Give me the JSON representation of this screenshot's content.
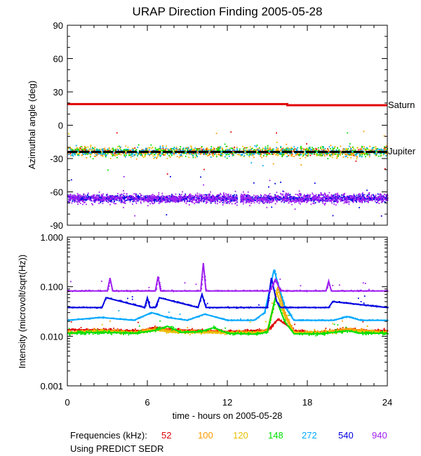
{
  "chart_data": [
    {
      "type": "scatter",
      "title": "URAP Direction Finding  2005-05-28",
      "ylabel": "Azimuthal angle (deg)",
      "xlim": [
        0,
        24
      ],
      "ylim": [
        -90,
        90
      ],
      "yticks": [
        "90",
        "60",
        "30",
        "0",
        "-30",
        "-60",
        "-90"
      ],
      "ytick_values": [
        90,
        60,
        30,
        0,
        -30,
        -60,
        -90
      ],
      "reference_lines": [
        {
          "name": "Saturn",
          "color": "#e00000",
          "x": [
            0,
            16.5,
            16.5,
            24
          ],
          "y": [
            19,
            19,
            18,
            18
          ]
        },
        {
          "name": "Jupiter",
          "color": "#000000",
          "x": [
            0,
            24
          ],
          "y": [
            -24,
            -24
          ]
        }
      ],
      "point_clusters": [
        {
          "frequency": "52",
          "center": -24,
          "spread": 4,
          "color": "#e00000"
        },
        {
          "frequency": "100",
          "center": -24,
          "spread": 7,
          "color": "#ff9900"
        },
        {
          "frequency": "120",
          "center": -24,
          "spread": 6,
          "color": "#e8c000"
        },
        {
          "frequency": "148",
          "center": -24,
          "spread": 6,
          "color": "#00e000"
        },
        {
          "frequency": "272",
          "center": -24,
          "spread": 5,
          "color": "#00a8ff"
        },
        {
          "frequency": "540",
          "center": -66,
          "spread": 4,
          "color": "#0000e0"
        },
        {
          "frequency": "940",
          "center": -66,
          "spread": 6,
          "color": "#a020f0"
        }
      ]
    },
    {
      "type": "line",
      "ylabel": "Intensity (microvolt/sqrt(Hz))",
      "xlabel": "time - hours on 2005-05-28",
      "xlim": [
        0,
        24
      ],
      "ylim": [
        0.001,
        1.0
      ],
      "yscale": "log",
      "yticks": [
        "1.000",
        "0.100",
        "0.010",
        "0.001"
      ],
      "ytick_values": [
        1.0,
        0.1,
        0.01,
        0.001
      ],
      "xticks": [
        "0",
        "6",
        "12",
        "18",
        "24"
      ],
      "xtick_values": [
        0,
        6,
        12,
        18,
        24
      ],
      "series": [
        {
          "frequency": "52",
          "color": "#e00000",
          "baseline": 0.0135,
          "x": [
            0,
            2.5,
            4,
            5.5,
            6.5,
            7.2,
            8,
            10,
            12,
            14,
            15,
            15.8,
            16.3,
            17,
            18,
            19,
            20,
            21,
            22,
            24
          ],
          "y": [
            0.0135,
            0.0135,
            0.013,
            0.013,
            0.015,
            0.014,
            0.0135,
            0.013,
            0.0125,
            0.013,
            0.013,
            0.022,
            0.018,
            0.013,
            0.012,
            0.012,
            0.013,
            0.014,
            0.013,
            0.013
          ]
        },
        {
          "frequency": "100",
          "color": "#ff9900",
          "baseline": 0.012,
          "x": [
            0,
            2.6,
            5,
            6.5,
            8,
            10,
            12,
            14,
            15,
            15.8,
            16.3,
            17,
            19,
            21,
            24
          ],
          "y": [
            0.012,
            0.013,
            0.012,
            0.014,
            0.013,
            0.0125,
            0.012,
            0.012,
            0.013,
            0.1,
            0.03,
            0.012,
            0.012,
            0.014,
            0.012
          ]
        },
        {
          "frequency": "120",
          "color": "#e8c000",
          "baseline": 0.0118,
          "x": [
            0,
            2.6,
            5,
            6.5,
            8,
            10,
            12,
            14,
            15,
            15.7,
            16.3,
            17,
            19,
            21,
            24
          ],
          "y": [
            0.0118,
            0.013,
            0.0118,
            0.0135,
            0.012,
            0.0118,
            0.0118,
            0.0118,
            0.0125,
            0.08,
            0.025,
            0.0118,
            0.0118,
            0.013,
            0.0118
          ]
        },
        {
          "frequency": "148",
          "color": "#00e000",
          "baseline": 0.0115,
          "x": [
            0,
            2.6,
            5,
            6.5,
            7.5,
            8.5,
            10,
            11,
            12,
            14,
            15,
            15.6,
            16.3,
            17,
            18,
            19,
            20,
            21,
            22,
            24
          ],
          "y": [
            0.0115,
            0.012,
            0.0115,
            0.013,
            0.016,
            0.012,
            0.0125,
            0.015,
            0.0115,
            0.011,
            0.012,
            0.06,
            0.02,
            0.0112,
            0.0112,
            0.0112,
            0.012,
            0.013,
            0.0115,
            0.0115
          ]
        },
        {
          "frequency": "272",
          "color": "#00a8ff",
          "baseline": 0.021,
          "x": [
            0,
            2.5,
            5,
            6.3,
            7.5,
            9,
            10.3,
            12,
            14,
            14.8,
            15.5,
            16.3,
            17,
            18,
            20,
            21,
            22,
            24
          ],
          "y": [
            0.021,
            0.024,
            0.021,
            0.03,
            0.024,
            0.021,
            0.028,
            0.021,
            0.021,
            0.03,
            0.22,
            0.04,
            0.021,
            0.021,
            0.021,
            0.025,
            0.021,
            0.021
          ]
        },
        {
          "frequency": "540",
          "color": "#0000e0",
          "baseline": 0.038,
          "x": [
            0,
            2.6,
            2.9,
            5.8,
            6.0,
            6.2,
            6.6,
            6.9,
            9.8,
            10.1,
            10.4,
            12,
            14,
            15.0,
            15.3,
            15.7,
            16,
            18,
            19.6,
            19.9,
            24
          ],
          "y": [
            0.038,
            0.038,
            0.06,
            0.038,
            0.06,
            0.038,
            0.038,
            0.06,
            0.038,
            0.07,
            0.038,
            0.038,
            0.038,
            0.038,
            0.15,
            0.05,
            0.038,
            0.038,
            0.038,
            0.05,
            0.038
          ]
        },
        {
          "frequency": "940",
          "color": "#a020f0",
          "baseline": 0.082,
          "x": [
            0,
            3.0,
            3.2,
            3.4,
            6.6,
            6.8,
            7.0,
            10.0,
            10.2,
            10.4,
            15.2,
            15.6,
            16,
            19.4,
            19.6,
            19.8,
            24
          ],
          "y": [
            0.082,
            0.082,
            0.15,
            0.082,
            0.082,
            0.16,
            0.082,
            0.082,
            0.3,
            0.082,
            0.082,
            0.14,
            0.082,
            0.082,
            0.13,
            0.082,
            0.082
          ]
        }
      ]
    }
  ],
  "legend": {
    "label": "Frequencies (kHz):",
    "items": [
      {
        "text": "52",
        "color": "#e00000"
      },
      {
        "text": "100",
        "color": "#ff9900"
      },
      {
        "text": "120",
        "color": "#e8c000"
      },
      {
        "text": "148",
        "color": "#00e000"
      },
      {
        "text": "272",
        "color": "#00a8ff"
      },
      {
        "text": "540",
        "color": "#0000e0"
      },
      {
        "text": "940",
        "color": "#a020f0"
      }
    ],
    "note": "Using PREDICT SEDR"
  }
}
